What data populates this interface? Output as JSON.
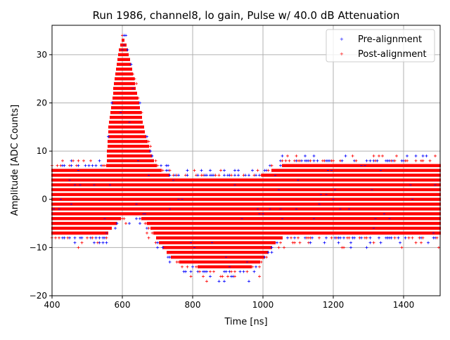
{
  "chart_data": {
    "type": "scatter",
    "title": "Run 1986, channel8, lo gain, Pulse w/ 40.0 dB Attenuation",
    "xlabel": "Time [ns]",
    "ylabel": "Amplitude [ADC Counts]",
    "xlim": [
      400,
      1504
    ],
    "ylim": [
      -20,
      36.1
    ],
    "xticks": [
      400,
      600,
      800,
      1000,
      1200,
      1400
    ],
    "yticks": [
      -20,
      -10,
      0,
      10,
      20,
      30
    ],
    "grid": true,
    "legend_position": "top-right",
    "series": [
      {
        "name": "Pre-alignment",
        "color": "#0000ff",
        "marker": "+"
      },
      {
        "name": "Post-alignment",
        "color": "#ff0000",
        "marker": "+"
      }
    ],
    "value_step": 1,
    "envelope_note": "dense samples at every integer ADC level between lo and hi",
    "envelope": [
      {
        "t": 400,
        "lo": -7,
        "hi": 6
      },
      {
        "t": 555,
        "lo": -7,
        "hi": 6
      },
      {
        "t": 562,
        "lo": -6,
        "hi": 15
      },
      {
        "t": 575,
        "lo": -5,
        "hi": 22
      },
      {
        "t": 590,
        "lo": -4,
        "hi": 30
      },
      {
        "t": 600,
        "lo": -3,
        "hi": 33
      },
      {
        "t": 610,
        "lo": -3,
        "hi": 32
      },
      {
        "t": 625,
        "lo": -3,
        "hi": 27
      },
      {
        "t": 645,
        "lo": -3,
        "hi": 20
      },
      {
        "t": 665,
        "lo": -4,
        "hi": 13
      },
      {
        "t": 685,
        "lo": -6,
        "hi": 8
      },
      {
        "t": 700,
        "lo": -8,
        "hi": 6
      },
      {
        "t": 720,
        "lo": -10,
        "hi": 5
      },
      {
        "t": 745,
        "lo": -12,
        "hi": 4
      },
      {
        "t": 780,
        "lo": -13,
        "hi": 4
      },
      {
        "t": 850,
        "lo": -14,
        "hi": 4
      },
      {
        "t": 950,
        "lo": -14,
        "hi": 4
      },
      {
        "t": 985,
        "lo": -13,
        "hi": 4
      },
      {
        "t": 1010,
        "lo": -11,
        "hi": 5
      },
      {
        "t": 1040,
        "lo": -8,
        "hi": 6
      },
      {
        "t": 1070,
        "lo": -7,
        "hi": 7
      },
      {
        "t": 1504,
        "lo": -7,
        "hi": 7
      }
    ]
  }
}
